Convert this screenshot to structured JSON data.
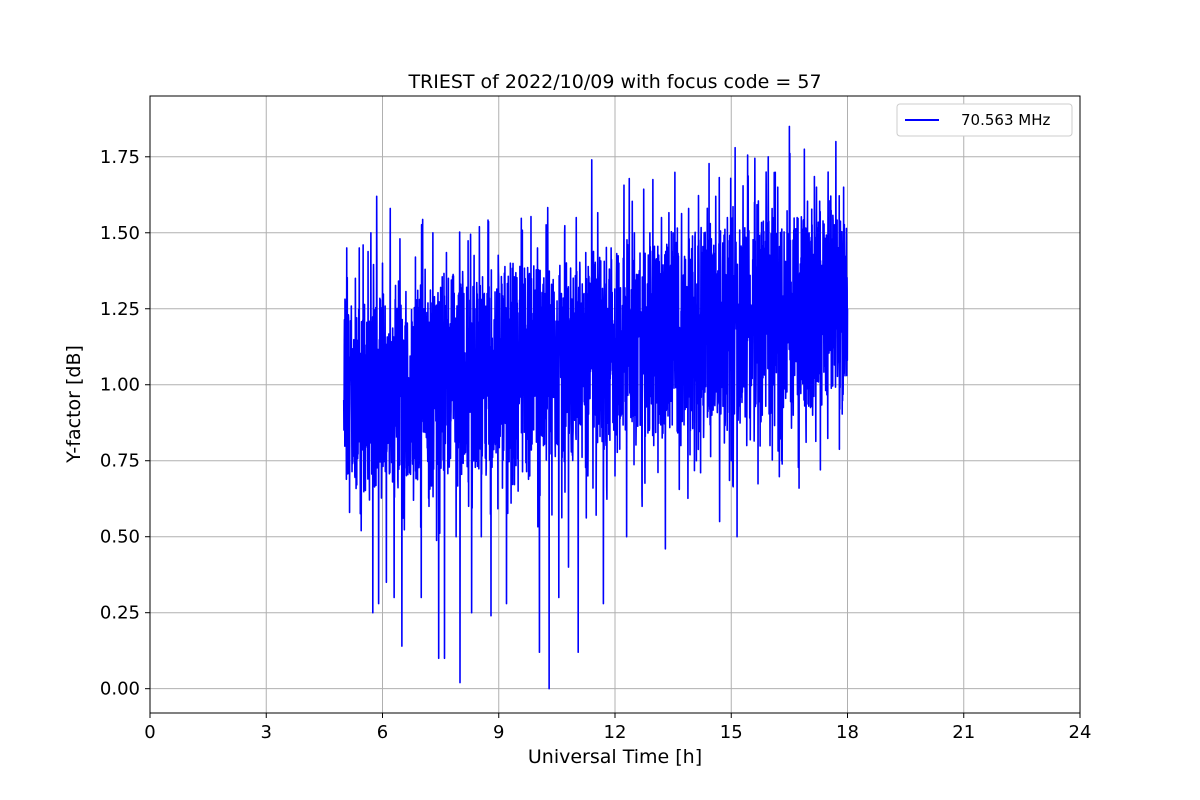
{
  "chart_data": {
    "type": "line",
    "title": "TRIEST of 2022/10/09 with focus code = 57",
    "xlabel": "Universal Time [h]",
    "ylabel": "Y-factor [dB]",
    "xlim": [
      0,
      24
    ],
    "ylim": [
      -0.08,
      1.95
    ],
    "xticks": [
      0,
      3,
      6,
      9,
      12,
      15,
      18,
      21,
      24
    ],
    "xtick_labels": [
      "0",
      "3",
      "6",
      "9",
      "12",
      "15",
      "18",
      "21",
      "24"
    ],
    "yticks": [
      0.0,
      0.25,
      0.5,
      0.75,
      1.0,
      1.25,
      1.5,
      1.75
    ],
    "ytick_labels": [
      "0.00",
      "0.25",
      "0.50",
      "0.75",
      "1.00",
      "1.25",
      "1.50",
      "1.75"
    ],
    "grid": true,
    "legend_position": "top-right",
    "series": [
      {
        "name": "70.563 MHz",
        "color": "#0000ff",
        "x_range": [
          5.0,
          18.0
        ],
        "points": [
          [
            5.0,
            0.95
          ],
          [
            5.05,
            1.22
          ],
          [
            5.1,
            0.78
          ],
          [
            5.12,
            1.23
          ],
          [
            5.15,
            0.58
          ],
          [
            5.2,
            1.05
          ],
          [
            5.25,
            0.9
          ],
          [
            5.3,
            1.35
          ],
          [
            5.4,
            1.45
          ],
          [
            5.45,
            0.52
          ],
          [
            5.5,
            1.46
          ],
          [
            5.6,
            0.8
          ],
          [
            5.7,
            1.5
          ],
          [
            5.75,
            0.25
          ],
          [
            5.85,
            1.62
          ],
          [
            5.9,
            0.28
          ],
          [
            6.0,
            1.4
          ],
          [
            6.1,
            0.35
          ],
          [
            6.2,
            1.58
          ],
          [
            6.3,
            0.3
          ],
          [
            6.45,
            1.48
          ],
          [
            6.5,
            0.14
          ],
          [
            6.6,
            1.2
          ],
          [
            6.8,
            0.62
          ],
          [
            6.85,
            1.42
          ],
          [
            7.0,
            0.3
          ],
          [
            7.1,
            1.38
          ],
          [
            7.2,
            0.6
          ],
          [
            7.3,
            1.5
          ],
          [
            7.45,
            0.1
          ],
          [
            7.5,
            1.32
          ],
          [
            7.6,
            0.1
          ],
          [
            7.7,
            1.35
          ],
          [
            7.9,
            0.5
          ],
          [
            8.0,
            0.02
          ],
          [
            8.1,
            1.3
          ],
          [
            8.3,
            0.25
          ],
          [
            8.5,
            1.52
          ],
          [
            8.55,
            0.5
          ],
          [
            8.7,
            1.3
          ],
          [
            8.8,
            0.24
          ],
          [
            9.0,
            1.3
          ],
          [
            9.2,
            0.28
          ],
          [
            9.3,
            1.4
          ],
          [
            9.5,
            0.65
          ],
          [
            9.6,
            1.4
          ],
          [
            9.8,
            0.7
          ],
          [
            10.0,
            1.45
          ],
          [
            10.05,
            0.12
          ],
          [
            10.2,
            1.3
          ],
          [
            10.3,
            0.0
          ],
          [
            10.4,
            1.1
          ],
          [
            10.55,
            0.3
          ],
          [
            10.7,
            1.5
          ],
          [
            10.8,
            0.4
          ],
          [
            11.0,
            1.55
          ],
          [
            11.05,
            0.12
          ],
          [
            11.2,
            1.3
          ],
          [
            11.3,
            0.7
          ],
          [
            11.4,
            1.74
          ],
          [
            11.5,
            0.9
          ],
          [
            11.6,
            1.3
          ],
          [
            11.7,
            0.28
          ],
          [
            11.9,
            1.45
          ],
          [
            12.0,
            0.7
          ],
          [
            12.1,
            1.4
          ],
          [
            12.3,
            0.5
          ],
          [
            12.5,
            1.5
          ],
          [
            12.7,
            0.6
          ],
          [
            12.9,
            1.5
          ],
          [
            13.0,
            0.8
          ],
          [
            13.2,
            1.55
          ],
          [
            13.3,
            0.46
          ],
          [
            13.5,
            1.5
          ],
          [
            13.7,
            0.8
          ],
          [
            13.9,
            1.58
          ],
          [
            14.1,
            0.75
          ],
          [
            14.3,
            1.5
          ],
          [
            14.5,
            0.9
          ],
          [
            14.6,
            1.62
          ],
          [
            14.7,
            0.55
          ],
          [
            14.9,
            1.55
          ],
          [
            15.0,
            0.75
          ],
          [
            15.1,
            1.78
          ],
          [
            15.15,
            0.5
          ],
          [
            15.3,
            1.45
          ],
          [
            15.4,
            0.8
          ],
          [
            15.6,
            1.6
          ],
          [
            15.8,
            0.9
          ],
          [
            15.9,
            1.7
          ],
          [
            16.0,
            0.8
          ],
          [
            16.2,
            1.65
          ],
          [
            16.3,
            0.75
          ],
          [
            16.5,
            1.85
          ],
          [
            16.6,
            0.9
          ],
          [
            16.7,
            1.55
          ],
          [
            16.75,
            0.66
          ],
          [
            16.9,
            1.5
          ],
          [
            17.1,
            0.9
          ],
          [
            17.2,
            1.65
          ],
          [
            17.3,
            0.72
          ],
          [
            17.5,
            1.7
          ],
          [
            17.6,
            1.0
          ],
          [
            17.7,
            1.8
          ],
          [
            17.8,
            0.92
          ],
          [
            17.9,
            1.65
          ],
          [
            18.0,
            1.25
          ]
        ]
      }
    ]
  }
}
